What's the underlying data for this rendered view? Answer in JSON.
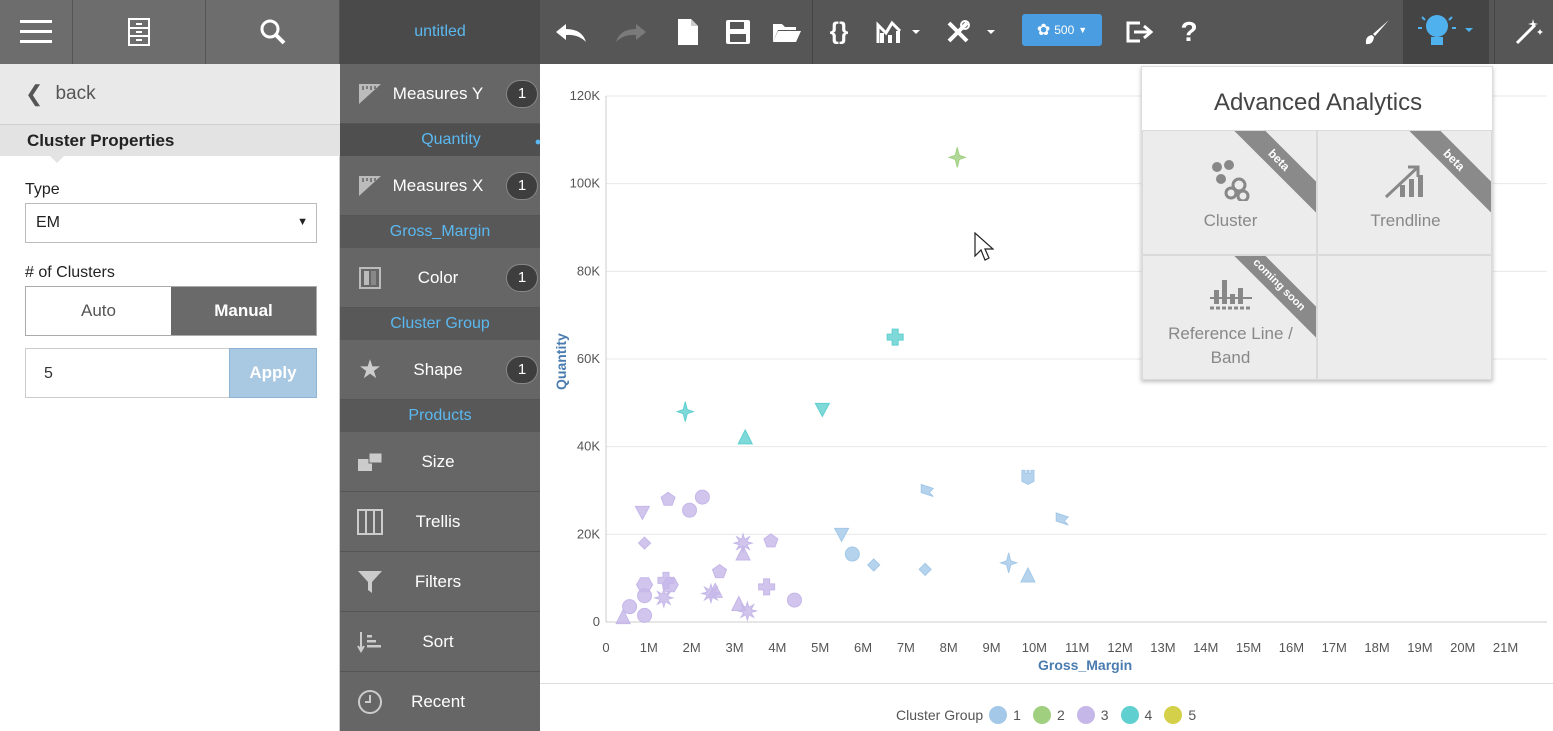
{
  "header": {
    "doc_title": "untitled",
    "points_badge": "500"
  },
  "left_panel": {
    "back_label": "back",
    "section_title": "Cluster Properties",
    "type_label": "Type",
    "type_value": "EM",
    "clusters_label": "# of Clusters",
    "mode_auto": "Auto",
    "mode_manual": "Manual",
    "mode_selected": "Manual",
    "clusters_value": "5",
    "apply_label": "Apply"
  },
  "shelves": {
    "measures_y": {
      "label": "Measures Y",
      "count": "1",
      "field": "Quantity"
    },
    "measures_x": {
      "label": "Measures X",
      "count": "1",
      "field": "Gross_Margin"
    },
    "color": {
      "label": "Color",
      "count": "1",
      "field": "Cluster Group"
    },
    "shape": {
      "label": "Shape",
      "count": "1",
      "field": "Products"
    },
    "size": {
      "label": "Size"
    },
    "trellis": {
      "label": "Trellis"
    },
    "filters": {
      "label": "Filters"
    },
    "sort": {
      "label": "Sort"
    },
    "recent": {
      "label": "Recent"
    }
  },
  "advanced_analytics": {
    "title": "Advanced Analytics",
    "tiles": [
      {
        "label": "Cluster",
        "ribbon": "beta"
      },
      {
        "label": "Trendline",
        "ribbon": "beta"
      },
      {
        "label_line1": "Reference Line /",
        "label_line2": "Band",
        "ribbon": "coming soon"
      }
    ]
  },
  "chart_data": {
    "type": "scatter",
    "xlabel": "Gross_Margin",
    "ylabel": "Quantity",
    "xlim": [
      0,
      21500000
    ],
    "ylim": [
      0,
      120000
    ],
    "x_ticks": [
      "0",
      "1M",
      "2M",
      "3M",
      "4M",
      "5M",
      "6M",
      "7M",
      "8M",
      "9M",
      "10M",
      "11M",
      "12M",
      "13M",
      "14M",
      "15M",
      "16M",
      "17M",
      "18M",
      "19M",
      "20M",
      "21M"
    ],
    "y_ticks": [
      "0",
      "20K",
      "40K",
      "60K",
      "80K",
      "100K",
      "120K"
    ],
    "legend_title": "Cluster Group",
    "legend_position": "bottom",
    "series": [
      {
        "name": "1",
        "color": "#a3c8e8",
        "points": [
          [
            5500000,
            20000,
            "tri-down"
          ],
          [
            5750000,
            15500,
            "circle"
          ],
          [
            6250000,
            13000,
            "diamond"
          ],
          [
            7450000,
            12000,
            "diamond"
          ],
          [
            7500000,
            30000,
            "flag"
          ],
          [
            9850000,
            33000,
            "castle"
          ],
          [
            9400000,
            13500,
            "star4"
          ],
          [
            9850000,
            10500,
            "tri-up"
          ],
          [
            10650000,
            23500,
            "flag"
          ]
        ]
      },
      {
        "name": "2",
        "color": "#9fcf7f",
        "points": [
          [
            8200000,
            106000,
            "star4"
          ]
        ]
      },
      {
        "name": "3",
        "color": "#c5b7e8",
        "points": [
          [
            850000,
            25000,
            "tri-down"
          ],
          [
            1450000,
            28000,
            "pentagon"
          ],
          [
            2250000,
            28500,
            "circle"
          ],
          [
            1950000,
            25500,
            "circle"
          ],
          [
            900000,
            18000,
            "diamond"
          ],
          [
            3200000,
            18000,
            "star-burst"
          ],
          [
            3850000,
            18500,
            "pentagon"
          ],
          [
            2650000,
            11500,
            "pentagon"
          ],
          [
            3200000,
            15500,
            "tri-up"
          ],
          [
            900000,
            8500,
            "hexagon"
          ],
          [
            1400000,
            9500,
            "cross"
          ],
          [
            1500000,
            8500,
            "hexagon"
          ],
          [
            3750000,
            8000,
            "cross"
          ],
          [
            900000,
            6000,
            "circle"
          ],
          [
            1350000,
            5500,
            "star-burst"
          ],
          [
            2450000,
            6500,
            "star-burst"
          ],
          [
            2550000,
            7000,
            "tri-up"
          ],
          [
            4400000,
            5000,
            "circle"
          ],
          [
            3100000,
            4000,
            "tri-up"
          ],
          [
            3300000,
            2500,
            "star-burst"
          ],
          [
            550000,
            3500,
            "circle"
          ],
          [
            900000,
            1500,
            "circle"
          ],
          [
            400000,
            1000,
            "tri-up"
          ]
        ]
      },
      {
        "name": "4",
        "color": "#5fd0cf",
        "points": [
          [
            1850000,
            48000,
            "star4"
          ],
          [
            5050000,
            48500,
            "tri-down"
          ],
          [
            3250000,
            42000,
            "tri-up"
          ],
          [
            6750000,
            65000,
            "cross"
          ]
        ]
      },
      {
        "name": "5",
        "color": "#d4d04a",
        "points": []
      }
    ]
  }
}
